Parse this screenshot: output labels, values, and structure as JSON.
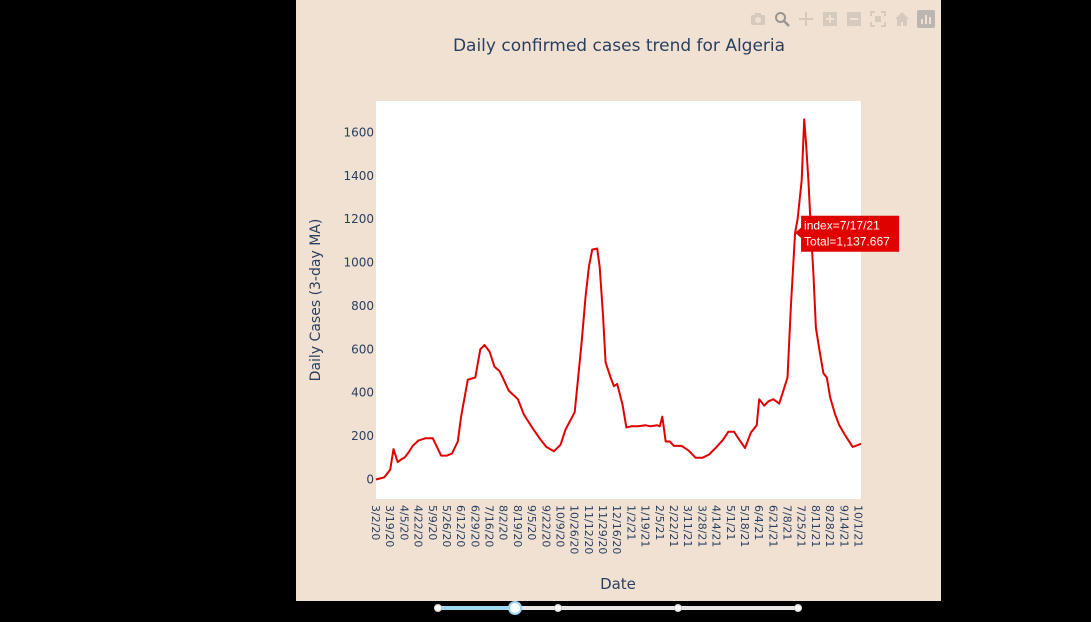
{
  "modebar": {
    "icons": [
      "camera-icon",
      "zoom-icon",
      "pan-icon",
      "zoom-in-icon",
      "zoom-out-icon",
      "autoscale-icon",
      "home-icon",
      "plotly-logo-icon"
    ]
  },
  "colors": {
    "paper": "#f1e1d2",
    "plot_bg": "#ffffff",
    "line": "#e00000",
    "tooltip_bg": "#e00000",
    "slider_accent": "#9fd6f0"
  },
  "tooltip": {
    "line1": "index=7/17/21",
    "line2": "Total=1,137.667"
  },
  "slider": {
    "steps": 4,
    "active_step": 1,
    "progress": 0.22
  },
  "chart_data": {
    "type": "line",
    "title": "Daily confirmed cases trend for Algeria",
    "xlabel": "Date",
    "ylabel": "Daily Cases (3-day MA)",
    "x_tick_labels": [
      "3/2/20",
      "3/19/20",
      "4/5/20",
      "4/22/20",
      "5/9/20",
      "5/26/20",
      "6/12/20",
      "6/29/20",
      "7/16/20",
      "8/2/20",
      "8/19/20",
      "9/5/20",
      "9/22/20",
      "10/9/20",
      "10/26/20",
      "11/12/20",
      "11/29/20",
      "12/16/20",
      "1/2/21",
      "1/19/21",
      "2/5/21",
      "2/22/21",
      "3/11/21",
      "3/28/21",
      "4/14/21",
      "5/1/21",
      "5/18/21",
      "6/4/21",
      "6/21/21",
      "7/8/21",
      "7/25/21",
      "8/11/21",
      "8/28/21",
      "9/14/21",
      "10/1/21"
    ],
    "y_ticks": [
      0,
      200,
      400,
      600,
      800,
      1000,
      1200,
      1400,
      1600
    ],
    "ylim": [
      -90,
      1745
    ],
    "grid": false,
    "series": [
      {
        "x": [
          "3/2/20",
          "3/12/20",
          "3/19/20",
          "3/23/20",
          "3/28/20",
          "4/2/20",
          "4/5/20",
          "4/10/20",
          "4/15/20",
          "4/22/20",
          "4/30/20",
          "5/9/20",
          "5/19/20",
          "5/26/20",
          "6/1/20",
          "6/8/20",
          "6/12/20",
          "6/20/20",
          "6/29/20",
          "7/5/20",
          "7/10/20",
          "7/16/20",
          "7/22/20",
          "7/28/20",
          "8/2/20",
          "8/8/20",
          "8/19/20",
          "8/26/20",
          "9/5/20",
          "9/15/20",
          "9/22/20",
          "10/1/20",
          "10/9/20",
          "10/15/20",
          "10/26/20",
          "11/3/20",
          "11/8/20",
          "11/12/20",
          "11/16/20",
          "11/22/20",
          "11/25/20",
          "11/29/20",
          "12/2/20",
          "12/8/20",
          "12/12/20",
          "12/16/20",
          "12/22/20",
          "12/27/20",
          "1/2/21",
          "1/10/21",
          "1/19/21",
          "1/25/21",
          "2/2/21",
          "2/5/21",
          "2/8/21",
          "2/12/21",
          "2/17/21",
          "2/22/21",
          "3/3/21",
          "3/11/21",
          "3/20/21",
          "3/28/21",
          "4/5/21",
          "4/14/21",
          "4/22/21",
          "4/28/21",
          "5/5/21",
          "5/10/21",
          "5/18/21",
          "5/25/21",
          "6/1/21",
          "6/4/21",
          "6/10/21",
          "6/15/21",
          "6/21/21",
          "6/28/21",
          "7/3/21",
          "7/8/21",
          "7/12/21",
          "7/17/21",
          "7/20/21",
          "7/25/21",
          "7/28/21",
          "7/30/21",
          "8/2/21",
          "8/5/21",
          "8/8/21",
          "8/11/21",
          "8/15/21",
          "8/20/21",
          "8/24/21",
          "8/28/21",
          "9/3/21",
          "9/8/21",
          "9/14/21",
          "9/19/21",
          "9/24/21",
          "10/1/21",
          "10/4/21"
        ],
        "y": [
          0,
          10,
          45,
          140,
          80,
          95,
          100,
          125,
          155,
          180,
          190,
          190,
          110,
          110,
          120,
          175,
          290,
          460,
          470,
          600,
          620,
          590,
          520,
          500,
          460,
          410,
          370,
          300,
          240,
          185,
          150,
          130,
          160,
          230,
          310,
          620,
          840,
          980,
          1060,
          1065,
          980,
          750,
          540,
          470,
          430,
          440,
          350,
          240,
          245,
          245,
          250,
          245,
          250,
          245,
          290,
          175,
          175,
          155,
          155,
          135,
          100,
          100,
          115,
          150,
          185,
          220,
          220,
          190,
          145,
          215,
          250,
          370,
          340,
          360,
          370,
          350,
          410,
          470,
          800,
          1137.667,
          1200,
          1380,
          1660,
          1560,
          1380,
          1150,
          950,
          700,
          600,
          490,
          470,
          380,
          300,
          250,
          210,
          180,
          150,
          160,
          165
        ]
      }
    ]
  }
}
